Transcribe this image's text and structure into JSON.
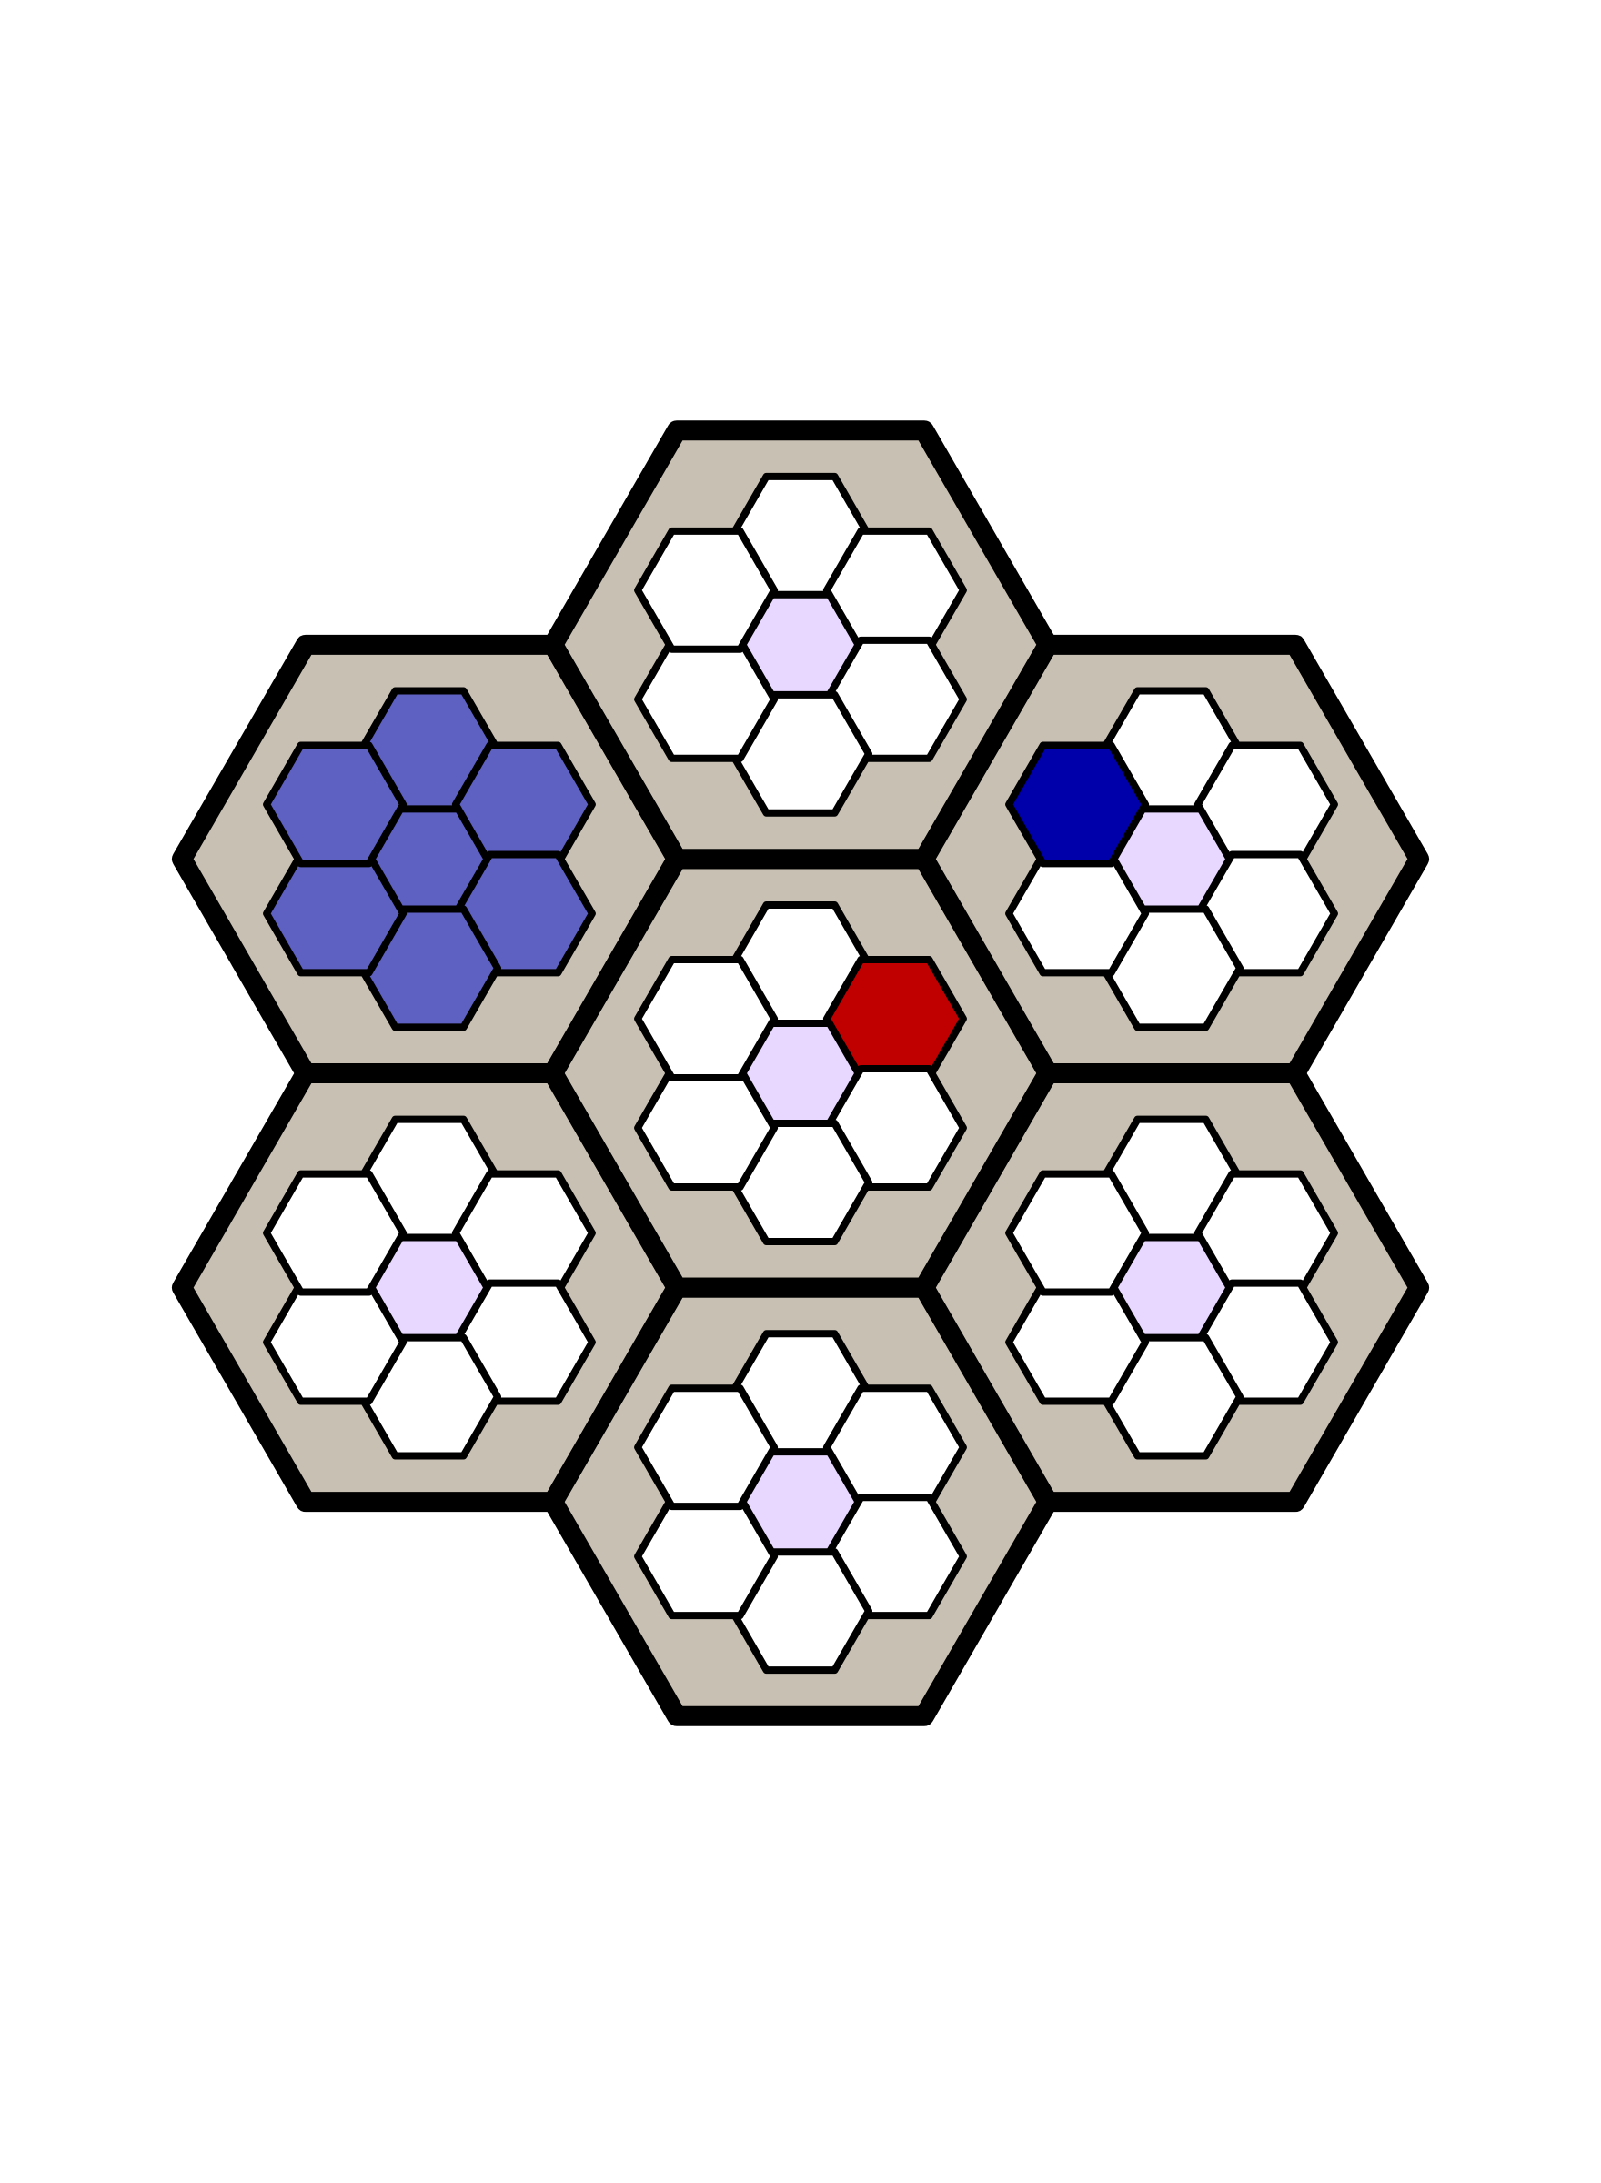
{
  "colors": {
    "background": "#ffffff",
    "frame": "#000000",
    "cell_border": "#000000",
    "empty": "#ffffff",
    "center_marker": "#e8d8ff",
    "filled_region": "#5e60c2",
    "player_blue": "#0000aa",
    "player_red": "#c00000",
    "wedge": "#c8c0b2"
  },
  "board": {
    "tiles": [
      {
        "name": "top",
        "layout": "single-center",
        "cells": {
          "center": "center_marker"
        }
      },
      {
        "name": "upper-left",
        "layout": "flower",
        "cells": {
          "center": "filled_region",
          "N": "filled_region",
          "NE": "filled_region",
          "SE": "filled_region",
          "S": "filled_region",
          "SW": "filled_region",
          "NW": "filled_region"
        }
      },
      {
        "name": "upper-right",
        "layout": "single-center",
        "cells": {
          "center": "center_marker",
          "NW": "player_blue"
        }
      },
      {
        "name": "middle",
        "layout": "single-center",
        "cells": {
          "center": "center_marker",
          "NE": "player_red"
        }
      },
      {
        "name": "lower-left",
        "layout": "single-center",
        "cells": {
          "center": "center_marker"
        }
      },
      {
        "name": "lower-right",
        "layout": "single-center",
        "cells": {
          "center": "center_marker"
        }
      },
      {
        "name": "bottom",
        "layout": "single-center",
        "cells": {
          "center": "center_marker"
        }
      }
    ]
  }
}
